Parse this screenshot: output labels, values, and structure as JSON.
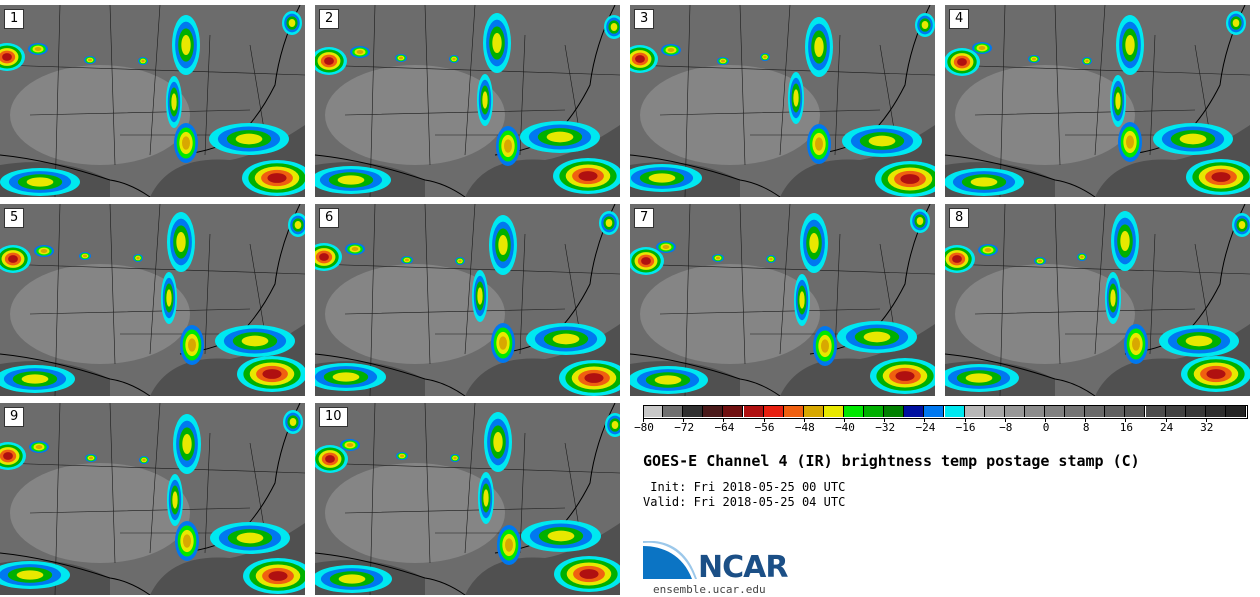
{
  "panels": [
    {
      "label": "1"
    },
    {
      "label": "2"
    },
    {
      "label": "3"
    },
    {
      "label": "4"
    },
    {
      "label": "5"
    },
    {
      "label": "6"
    },
    {
      "label": "7"
    },
    {
      "label": "8"
    },
    {
      "label": "9"
    },
    {
      "label": "10"
    }
  ],
  "colorbar": {
    "colors": [
      "#c8c8c8",
      "#707070",
      "#303030",
      "#4a1a1a",
      "#701010",
      "#b01010",
      "#e82010",
      "#f06010",
      "#d8a800",
      "#e8e800",
      "#00e800",
      "#00b000",
      "#008000",
      "#0010a0",
      "#0078f0",
      "#00e8f0",
      "#b8b8b8",
      "#a8a8a8",
      "#989898",
      "#8c8c8c",
      "#808080",
      "#747474",
      "#6a6a6a",
      "#606060",
      "#565656",
      "#4c4c4c",
      "#424242",
      "#383838",
      "#2e2e2e",
      "#242424"
    ],
    "min": -80,
    "max": 40,
    "ticks": [
      "-80",
      "-72",
      "-64",
      "-56",
      "-48",
      "-40",
      "-32",
      "-24",
      "-16",
      "-8",
      "0",
      "8",
      "16",
      "24",
      "32"
    ]
  },
  "title": "GOES-E Channel 4 (IR) brightness temp postage stamp (C)",
  "init_text": " Init: Fri 2018-05-25 00 UTC",
  "valid_text": "Valid: Fri 2018-05-25 04 UTC",
  "logo_text": "NCAR",
  "website": "ensemble.ucar.edu"
}
